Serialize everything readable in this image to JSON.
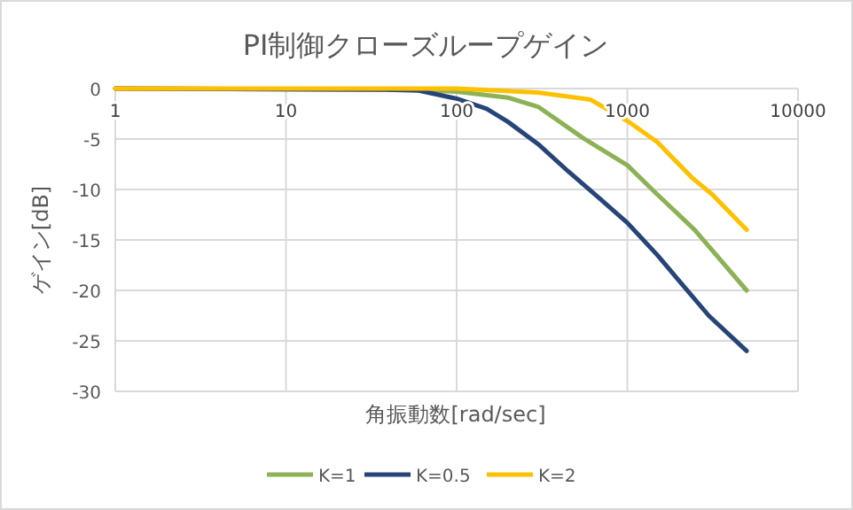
{
  "chart_data": {
    "type": "line",
    "title": "PI制御クローズループゲイン",
    "xlabel": "角振動数[rad/sec]",
    "ylabel": "ゲイン[dB]",
    "log": "x",
    "xlim": [
      1,
      10000
    ],
    "xticks": [
      1,
      10,
      100,
      1000,
      10000
    ],
    "ylim": [
      -30,
      0
    ],
    "yticks": [
      0,
      -5,
      -10,
      -15,
      -20,
      -25,
      -30
    ],
    "grid": true,
    "legend": "bottom",
    "series": [
      {
        "name": "K=1",
        "color": "#8db255",
        "x": [
          1,
          50,
          100,
          200,
          300,
          550,
          1000,
          1500,
          2480,
          5000
        ],
        "values": [
          0,
          -0.1,
          -0.3,
          -0.9,
          -1.8,
          -4.9,
          -7.6,
          -10.5,
          -14,
          -20
        ]
      },
      {
        "name": "K=0.5",
        "color": "#264478",
        "x": [
          1,
          38,
          60,
          100,
          150,
          200,
          300,
          450,
          700,
          1000,
          1500,
          2000,
          3000,
          5000
        ],
        "values": [
          0,
          -0.1,
          -0.2,
          -1,
          -2,
          -3.3,
          -5.5,
          -8.2,
          -11,
          -13.3,
          -16.5,
          -19,
          -22.5,
          -26
        ]
      },
      {
        "name": "K=2",
        "color": "#ffc000",
        "x": [
          1,
          100,
          300,
          610,
          1000,
          1500,
          2380,
          3150,
          5000
        ],
        "values": [
          0,
          0,
          -0.4,
          -1.1,
          -3.2,
          -5.3,
          -8.8,
          -10.5,
          -14
        ]
      }
    ]
  }
}
